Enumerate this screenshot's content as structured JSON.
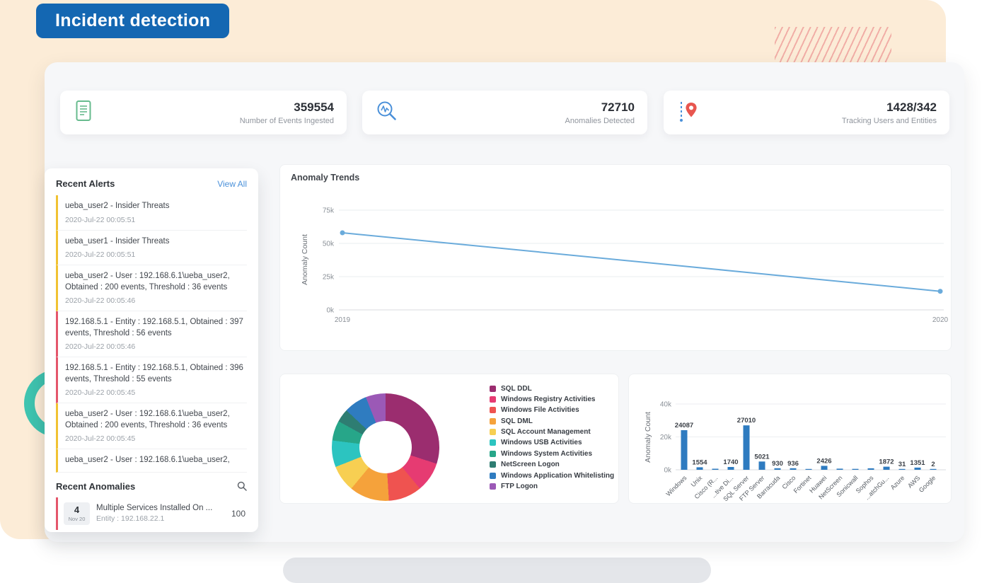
{
  "page": {
    "badge": "Incident detection"
  },
  "colors": {
    "badge_bg": "#1467b2",
    "accent_teal": "#3fc4b0",
    "stripe_red": "#efa39e",
    "alert_yellow": "#f1c232",
    "alert_red": "#e4566b",
    "line_blue": "#6aabdb",
    "bar_blue": "#2e7bc0",
    "link_blue": "#4a90d9"
  },
  "stats": [
    {
      "icon": "events-document-icon",
      "value": "359554",
      "label": "Number of Events Ingested"
    },
    {
      "icon": "anomalies-magnifier-icon",
      "value": "72710",
      "label": "Anomalies Detected"
    },
    {
      "icon": "tracking-route-pin-icon",
      "value": "1428/342",
      "label": "Tracking Users and Entities"
    }
  ],
  "recent_alerts": {
    "title": "Recent Alerts",
    "view_all": "View All",
    "items": [
      {
        "text": "ueba_user2 - Insider Threats",
        "time": "2020-Jul-22 00:05:51",
        "severity": "yellow"
      },
      {
        "text": "ueba_user1 - Insider Threats",
        "time": "2020-Jul-22 00:05:51",
        "severity": "yellow"
      },
      {
        "text": "ueba_user2 - User : 192.168.6.1\\ueba_user2, Obtained : 200 events, Threshold : 36 events",
        "time": "2020-Jul-22 00:05:46",
        "severity": "yellow"
      },
      {
        "text": "192.168.5.1 - Entity : 192.168.5.1, Obtained : 397 events, Threshold : 56 events",
        "time": "2020-Jul-22 00:05:46",
        "severity": "red"
      },
      {
        "text": "192.168.5.1 - Entity : 192.168.5.1, Obtained : 396 events, Threshold : 55 events",
        "time": "2020-Jul-22 00:05:45",
        "severity": "red"
      },
      {
        "text": "ueba_user2 - User : 192.168.6.1\\ueba_user2, Obtained : 200 events, Threshold : 36 events",
        "time": "2020-Jul-22 00:05:45",
        "severity": "yellow"
      },
      {
        "text": "ueba_user2 - User : 192.168.6.1\\ueba_user2,",
        "time": "",
        "severity": "yellow"
      }
    ]
  },
  "recent_anomalies": {
    "title": "Recent Anomalies",
    "items": [
      {
        "day": "4",
        "month": "Nov 20",
        "title": "Multiple Services Installed On ...",
        "entity": "Entity : 192.168.22.1",
        "score": "100",
        "severity": "red"
      }
    ]
  },
  "chart_data": [
    {
      "type": "line",
      "title": "Anomaly Trends",
      "xlabel": "",
      "ylabel": "Anomaly Count",
      "x": [
        "2019",
        "2020"
      ],
      "values": [
        58000,
        14000
      ],
      "yticks": [
        "0k",
        "25k",
        "50k",
        "75k"
      ],
      "ylim": [
        0,
        75000
      ],
      "grid": true,
      "line_color": "#6aabdb"
    },
    {
      "type": "pie",
      "subtype": "donut",
      "legend_position": "right",
      "labels": [
        "SQL DDL",
        "Windows Registry Activities",
        "Windows File Activities",
        "SQL DML",
        "SQL Account Management",
        "Windows USB Activities",
        "Windows System Activities",
        "NetScreen Logon",
        "Windows Application Whitelisting",
        "FTP Logon"
      ],
      "values": [
        30,
        9,
        10,
        12,
        8,
        8,
        6,
        4,
        7,
        6
      ],
      "colors": [
        "#9b2d6f",
        "#e63b72",
        "#ef5350",
        "#f5a23b",
        "#f7cf52",
        "#2cc4c0",
        "#27a689",
        "#2e7d72",
        "#2f7cc0",
        "#9b59b6"
      ]
    },
    {
      "type": "bar",
      "xlabel": "",
      "ylabel": "Anomaly Count",
      "yticks": [
        "0k",
        "20k",
        "40k"
      ],
      "ylim": [
        0,
        40000
      ],
      "grid": true,
      "bar_color": "#2e7bc0",
      "categories": [
        "Windows",
        "Unix",
        "Cisco (R...",
        "...tive Di...",
        "SQL Server",
        "FTP Server",
        "Barracuda",
        "Cisco",
        "Fortinet",
        "Huawei",
        "NetScreen",
        "Sonicwall",
        "Sophos",
        "...atchGu...",
        "Azure",
        "AWS",
        "Google"
      ],
      "values": [
        24087,
        1554,
        650,
        1740,
        27010,
        5021,
        930,
        936,
        480,
        2426,
        700,
        560,
        900,
        1872,
        31,
        1351,
        2
      ],
      "bar_labels": [
        "24087",
        "1554",
        "",
        "1740",
        "27010",
        "5021",
        "930",
        "936",
        "",
        "2426",
        "",
        "",
        "",
        "1872",
        "31",
        "1351",
        "2"
      ]
    }
  ]
}
